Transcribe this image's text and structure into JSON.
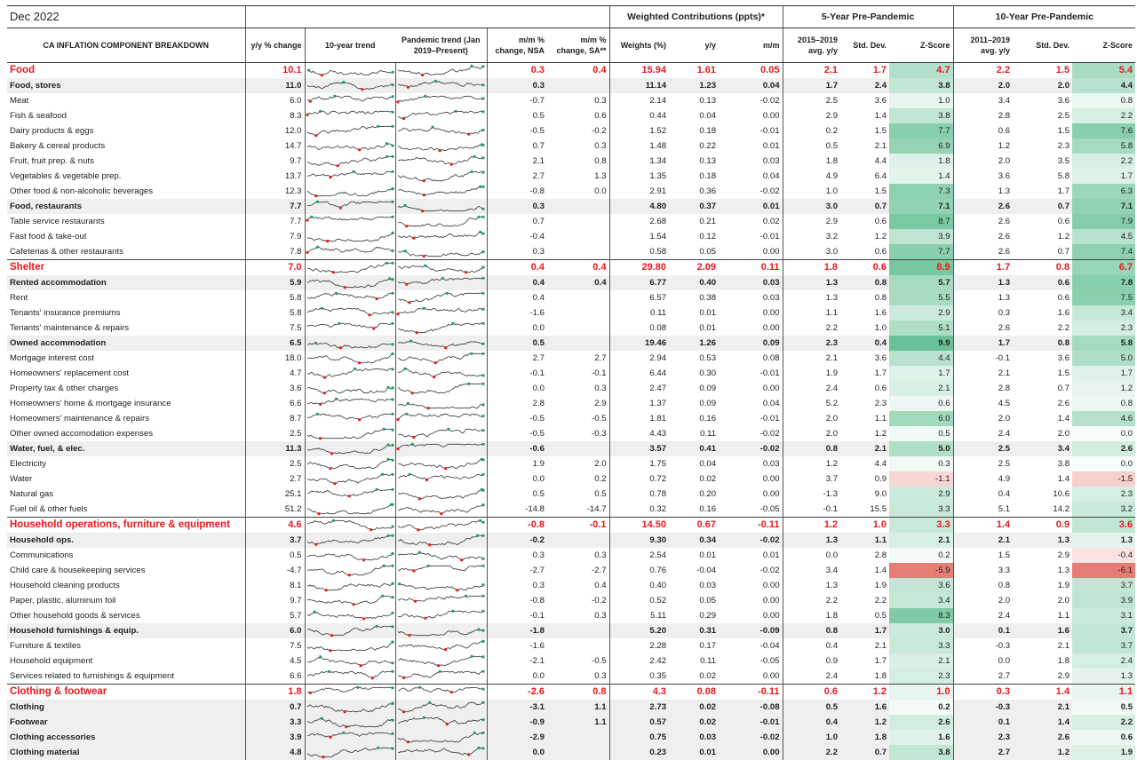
{
  "title_date": "Dec 2022",
  "group_headers": {
    "weighted": "Weighted Contributions (ppts)*",
    "five_year": "5-Year Pre-Pandemic",
    "ten_year": "10-Year Pre-Pandemic"
  },
  "columns": {
    "name": "CA INFLATION COMPONENT BREAKDOWN",
    "yy": "y/y % change",
    "trend10": "10-year trend",
    "trend_pandemic": "Pandemic trend (Jan 2019–Present)",
    "mm_nsa": "m/m % change, NSA",
    "mm_sa": "m/m % change, SA**",
    "weights": "Weights (%)",
    "w_yy": "y/y",
    "w_mm": "m/m",
    "avg5": "2015–2019 avg. y/y",
    "sd5": "Std. Dev.",
    "z5": "Z-Score",
    "avg10": "2011–2019 avg. y/y",
    "sd10": "Std. Dev.",
    "z10": "Z-Score"
  },
  "colors": {
    "category_text": "#e8191d",
    "sub_bg": "#efefef",
    "z_positive": "#57bb8a",
    "z_negative": "#e67c73",
    "spark_line": "#333333",
    "spark_low": "#e8191d",
    "spark_high": "#1a9e5b"
  },
  "rows": [
    {
      "type": "cat",
      "name": "Food",
      "yy": "10.1",
      "nsa": "0.3",
      "sa": "0.4",
      "w": "15.94",
      "wyy": "1.61",
      "wmm": "0.05",
      "a5": "2.1",
      "s5": "1.7",
      "z5": "4.7",
      "a10": "2.2",
      "s10": "1.5",
      "z10": "5.4"
    },
    {
      "type": "sub",
      "name": "Food, stores",
      "yy": "11.0",
      "nsa": "0.3",
      "sa": "",
      "w": "11.14",
      "wyy": "1.23",
      "wmm": "0.04",
      "a5": "1.7",
      "s5": "2.4",
      "z5": "3.8",
      "a10": "2.0",
      "s10": "2.0",
      "z10": "4.4"
    },
    {
      "type": "item",
      "name": "Meat",
      "yy": "6.0",
      "nsa": "-0.7",
      "sa": "0.3",
      "w": "2.14",
      "wyy": "0.13",
      "wmm": "-0.02",
      "a5": "2.5",
      "s5": "3.6",
      "z5": "1.0",
      "a10": "3.4",
      "s10": "3.6",
      "z10": "0.8"
    },
    {
      "type": "item",
      "name": "Fish & seafood",
      "yy": "8.3",
      "nsa": "0.5",
      "sa": "0.6",
      "w": "0.44",
      "wyy": "0.04",
      "wmm": "0.00",
      "a5": "2.9",
      "s5": "1.4",
      "z5": "3.8",
      "a10": "2.8",
      "s10": "2.5",
      "z10": "2.2"
    },
    {
      "type": "item",
      "name": "Dairy products & eggs",
      "yy": "12.0",
      "nsa": "-0.5",
      "sa": "-0.2",
      "w": "1.52",
      "wyy": "0.18",
      "wmm": "-0.01",
      "a5": "0.2",
      "s5": "1.5",
      "z5": "7.7",
      "a10": "0.6",
      "s10": "1.5",
      "z10": "7.6"
    },
    {
      "type": "item",
      "name": "Bakery & cereal products",
      "yy": "14.7",
      "nsa": "0.7",
      "sa": "0.3",
      "w": "1.48",
      "wyy": "0.22",
      "wmm": "0.01",
      "a5": "0.5",
      "s5": "2.1",
      "z5": "6.9",
      "a10": "1.2",
      "s10": "2.3",
      "z10": "5.8"
    },
    {
      "type": "item",
      "name": "Fruit, fruit prep. & nuts",
      "yy": "9.7",
      "nsa": "2.1",
      "sa": "0.8",
      "w": "1.34",
      "wyy": "0.13",
      "wmm": "0.03",
      "a5": "1.8",
      "s5": "4.4",
      "z5": "1.8",
      "a10": "2.0",
      "s10": "3.5",
      "z10": "2.2"
    },
    {
      "type": "item",
      "name": "Vegetables & vegetable prep.",
      "yy": "13.7",
      "nsa": "2.7",
      "sa": "1.3",
      "w": "1.35",
      "wyy": "0.18",
      "wmm": "0.04",
      "a5": "4.9",
      "s5": "6.4",
      "z5": "1.4",
      "a10": "3.6",
      "s10": "5.8",
      "z10": "1.7"
    },
    {
      "type": "item",
      "name": "Other food & non-alcoholic beverages",
      "yy": "12.3",
      "nsa": "-0.8",
      "sa": "0.0",
      "w": "2.91",
      "wyy": "0.36",
      "wmm": "-0.02",
      "a5": "1.0",
      "s5": "1.5",
      "z5": "7.3",
      "a10": "1.3",
      "s10": "1.7",
      "z10": "6.3"
    },
    {
      "type": "sub",
      "name": "Food, restaurants",
      "yy": "7.7",
      "nsa": "0.3",
      "sa": "",
      "w": "4.80",
      "wyy": "0.37",
      "wmm": "0.01",
      "a5": "3.0",
      "s5": "0.7",
      "z5": "7.1",
      "a10": "2.6",
      "s10": "0.7",
      "z10": "7.1"
    },
    {
      "type": "item",
      "name": "Table service restaurants",
      "yy": "7.7",
      "nsa": "0.7",
      "sa": "",
      "w": "2.68",
      "wyy": "0.21",
      "wmm": "0.02",
      "a5": "2.9",
      "s5": "0.6",
      "z5": "8.7",
      "a10": "2.6",
      "s10": "0.6",
      "z10": "7.9"
    },
    {
      "type": "item",
      "name": "Fast food & take-out",
      "yy": "7.9",
      "nsa": "-0.4",
      "sa": "",
      "w": "1.54",
      "wyy": "0.12",
      "wmm": "-0.01",
      "a5": "3.2",
      "s5": "1.2",
      "z5": "3.9",
      "a10": "2.6",
      "s10": "1.2",
      "z10": "4.5"
    },
    {
      "type": "item",
      "name": "Cafeterias & other restaurants",
      "yy": "7.8",
      "nsa": "0.3",
      "sa": "",
      "w": "0.58",
      "wyy": "0.05",
      "wmm": "0.00",
      "a5": "3.0",
      "s5": "0.6",
      "z5": "7.7",
      "a10": "2.6",
      "s10": "0.7",
      "z10": "7.4"
    },
    {
      "type": "cat",
      "name": "Shelter",
      "yy": "7.0",
      "nsa": "0.4",
      "sa": "0.4",
      "w": "29.80",
      "wyy": "2.09",
      "wmm": "0.11",
      "a5": "1.8",
      "s5": "0.6",
      "z5": "8.9",
      "a10": "1.7",
      "s10": "0.8",
      "z10": "6.7"
    },
    {
      "type": "sub",
      "name": "Rented accommodation",
      "yy": "5.9",
      "nsa": "0.4",
      "sa": "0.4",
      "w": "6.77",
      "wyy": "0.40",
      "wmm": "0.03",
      "a5": "1.3",
      "s5": "0.8",
      "z5": "5.7",
      "a10": "1.3",
      "s10": "0.6",
      "z10": "7.8"
    },
    {
      "type": "item",
      "name": "Rent",
      "yy": "5.8",
      "nsa": "0.4",
      "sa": "",
      "w": "6.57",
      "wyy": "0.38",
      "wmm": "0.03",
      "a5": "1.3",
      "s5": "0.8",
      "z5": "5.5",
      "a10": "1.3",
      "s10": "0.6",
      "z10": "7.5"
    },
    {
      "type": "item",
      "name": "Tenants' insurance premiums",
      "yy": "5.8",
      "nsa": "-1.6",
      "sa": "",
      "w": "0.11",
      "wyy": "0.01",
      "wmm": "0.00",
      "a5": "1.1",
      "s5": "1.6",
      "z5": "2.9",
      "a10": "0.3",
      "s10": "1.6",
      "z10": "3.4"
    },
    {
      "type": "item",
      "name": "Tenants' maintenance & repairs",
      "yy": "7.5",
      "nsa": "0.0",
      "sa": "",
      "w": "0.08",
      "wyy": "0.01",
      "wmm": "0.00",
      "a5": "2.2",
      "s5": "1.0",
      "z5": "5.1",
      "a10": "2.6",
      "s10": "2.2",
      "z10": "2.3"
    },
    {
      "type": "sub",
      "name": "Owned accommodation",
      "yy": "6.5",
      "nsa": "0.5",
      "sa": "",
      "w": "19.46",
      "wyy": "1.26",
      "wmm": "0.09",
      "a5": "2.3",
      "s5": "0.4",
      "z5": "9.9",
      "a10": "1.7",
      "s10": "0.8",
      "z10": "5.8"
    },
    {
      "type": "item",
      "name": "Mortgage interest cost",
      "yy": "18.0",
      "nsa": "2.7",
      "sa": "2.7",
      "w": "2.94",
      "wyy": "0.53",
      "wmm": "0.08",
      "a5": "2.1",
      "s5": "3.6",
      "z5": "4.4",
      "a10": "-0.1",
      "s10": "3.6",
      "z10": "5.0"
    },
    {
      "type": "item",
      "name": "Homeowners' replacement cost",
      "yy": "4.7",
      "nsa": "-0.1",
      "sa": "-0.1",
      "w": "6.44",
      "wyy": "0.30",
      "wmm": "-0.01",
      "a5": "1.9",
      "s5": "1.7",
      "z5": "1.7",
      "a10": "2.1",
      "s10": "1.5",
      "z10": "1.7"
    },
    {
      "type": "item",
      "name": "Property tax & other charges",
      "yy": "3.6",
      "nsa": "0.0",
      "sa": "0.3",
      "w": "2.47",
      "wyy": "0.09",
      "wmm": "0.00",
      "a5": "2.4",
      "s5": "0.6",
      "z5": "2.1",
      "a10": "2.8",
      "s10": "0.7",
      "z10": "1.2"
    },
    {
      "type": "item",
      "name": "Homeowners' home & mortgage insurance",
      "yy": "6.6",
      "nsa": "2.8",
      "sa": "2.9",
      "w": "1.37",
      "wyy": "0.09",
      "wmm": "0.04",
      "a5": "5.2",
      "s5": "2.3",
      "z5": "0.6",
      "a10": "4.5",
      "s10": "2.6",
      "z10": "0.8"
    },
    {
      "type": "item",
      "name": "Homeowners' maintenance & repairs",
      "yy": "8.7",
      "nsa": "-0.5",
      "sa": "-0.5",
      "w": "1.81",
      "wyy": "0.16",
      "wmm": "-0.01",
      "a5": "2.0",
      "s5": "1.1",
      "z5": "6.0",
      "a10": "2.0",
      "s10": "1.4",
      "z10": "4.6"
    },
    {
      "type": "item",
      "name": "Other owned accomodation expenses",
      "yy": "2.5",
      "nsa": "-0.5",
      "sa": "-0.3",
      "w": "4.43",
      "wyy": "0.11",
      "wmm": "-0.02",
      "a5": "2.0",
      "s5": "1.2",
      "z5": "0.5",
      "a10": "2.4",
      "s10": "2.0",
      "z10": "0.0"
    },
    {
      "type": "sub",
      "name": "Water, fuel, & elec.",
      "yy": "11.3",
      "nsa": "-0.6",
      "sa": "",
      "w": "3.57",
      "wyy": "0.41",
      "wmm": "-0.02",
      "a5": "0.8",
      "s5": "2.1",
      "z5": "5.0",
      "a10": "2.5",
      "s10": "3.4",
      "z10": "2.6"
    },
    {
      "type": "item",
      "name": "Electricity",
      "yy": "2.5",
      "nsa": "1.9",
      "sa": "2.0",
      "w": "1.75",
      "wyy": "0.04",
      "wmm": "0.03",
      "a5": "1.2",
      "s5": "4.4",
      "z5": "0.3",
      "a10": "2.5",
      "s10": "3.8",
      "z10": "0.0"
    },
    {
      "type": "item",
      "name": "Water",
      "yy": "2.7",
      "nsa": "0.0",
      "sa": "0.2",
      "w": "0.72",
      "wyy": "0.02",
      "wmm": "0.00",
      "a5": "3.7",
      "s5": "0.9",
      "z5": "-1.1",
      "a10": "4.9",
      "s10": "1.4",
      "z10": "-1.5"
    },
    {
      "type": "item",
      "name": "Natural gas",
      "yy": "25.1",
      "nsa": "0.5",
      "sa": "0.5",
      "w": "0.78",
      "wyy": "0.20",
      "wmm": "0.00",
      "a5": "-1.3",
      "s5": "9.0",
      "z5": "2.9",
      "a10": "0.4",
      "s10": "10.6",
      "z10": "2.3"
    },
    {
      "type": "item",
      "name": "Fuel oil & other fuels",
      "yy": "51.2",
      "nsa": "-14.8",
      "sa": "-14.7",
      "w": "0.32",
      "wyy": "0.16",
      "wmm": "-0.05",
      "a5": "-0.1",
      "s5": "15.5",
      "z5": "3.3",
      "a10": "5.1",
      "s10": "14.2",
      "z10": "3.2"
    },
    {
      "type": "cat",
      "name": "Household operations, furniture & equipment",
      "yy": "4.6",
      "nsa": "-0.8",
      "sa": "-0.1",
      "w": "14.50",
      "wyy": "0.67",
      "wmm": "-0.11",
      "a5": "1.2",
      "s5": "1.0",
      "z5": "3.3",
      "a10": "1.4",
      "s10": "0.9",
      "z10": "3.6"
    },
    {
      "type": "sub",
      "name": "Household ops.",
      "yy": "3.7",
      "nsa": "-0.2",
      "sa": "",
      "w": "9.30",
      "wyy": "0.34",
      "wmm": "-0.02",
      "a5": "1.3",
      "s5": "1.1",
      "z5": "2.1",
      "a10": "2.1",
      "s10": "1.3",
      "z10": "1.3"
    },
    {
      "type": "item",
      "name": "Communications",
      "yy": "0.5",
      "nsa": "0.3",
      "sa": "0.3",
      "w": "2.54",
      "wyy": "0.01",
      "wmm": "0.01",
      "a5": "0.0",
      "s5": "2.8",
      "z5": "0.2",
      "a10": "1.5",
      "s10": "2.9",
      "z10": "-0.4"
    },
    {
      "type": "item",
      "name": "Child care & housekeeping services",
      "yy": "-4.7",
      "nsa": "-2.7",
      "sa": "-2.7",
      "w": "0.76",
      "wyy": "-0.04",
      "wmm": "-0.02",
      "a5": "3.4",
      "s5": "1.4",
      "z5": "-5.9",
      "a10": "3.3",
      "s10": "1.3",
      "z10": "-6.1"
    },
    {
      "type": "item",
      "name": "Household cleaning products",
      "yy": "8.1",
      "nsa": "0.3",
      "sa": "0.4",
      "w": "0.40",
      "wyy": "0.03",
      "wmm": "0.00",
      "a5": "1.3",
      "s5": "1.9",
      "z5": "3.6",
      "a10": "0.8",
      "s10": "1.9",
      "z10": "3.7"
    },
    {
      "type": "item",
      "name": "Paper, plastic, aluminum foil",
      "yy": "9.7",
      "nsa": "-0.8",
      "sa": "-0.2",
      "w": "0.52",
      "wyy": "0.05",
      "wmm": "0.00",
      "a5": "2.2",
      "s5": "2.2",
      "z5": "3.4",
      "a10": "2.0",
      "s10": "2.0",
      "z10": "3.9"
    },
    {
      "type": "item",
      "name": "Other household goods & services",
      "yy": "5.7",
      "nsa": "-0.1",
      "sa": "0.3",
      "w": "5.11",
      "wyy": "0.29",
      "wmm": "0.00",
      "a5": "1.8",
      "s5": "0.5",
      "z5": "8.3",
      "a10": "2.4",
      "s10": "1.1",
      "z10": "3.1"
    },
    {
      "type": "sub",
      "name": "Household furnishings & equip.",
      "yy": "6.0",
      "nsa": "-1.8",
      "sa": "",
      "w": "5.20",
      "wyy": "0.31",
      "wmm": "-0.09",
      "a5": "0.8",
      "s5": "1.7",
      "z5": "3.0",
      "a10": "0.1",
      "s10": "1.6",
      "z10": "3.7"
    },
    {
      "type": "item",
      "name": "Furniture & textiles",
      "yy": "7.5",
      "nsa": "-1.6",
      "sa": "",
      "w": "2.28",
      "wyy": "0.17",
      "wmm": "-0.04",
      "a5": "0.4",
      "s5": "2.1",
      "z5": "3.3",
      "a10": "-0.3",
      "s10": "2.1",
      "z10": "3.7"
    },
    {
      "type": "item",
      "name": "Household equipment",
      "yy": "4.5",
      "nsa": "-2.1",
      "sa": "-0.5",
      "w": "2.42",
      "wyy": "0.11",
      "wmm": "-0.05",
      "a5": "0.9",
      "s5": "1.7",
      "z5": "2.1",
      "a10": "0.0",
      "s10": "1.8",
      "z10": "2.4"
    },
    {
      "type": "item",
      "name": "Services related to furnishings & equipment",
      "yy": "6.6",
      "nsa": "0.0",
      "sa": "0.3",
      "w": "0.35",
      "wyy": "0.02",
      "wmm": "0.00",
      "a5": "2.4",
      "s5": "1.8",
      "z5": "2.3",
      "a10": "2.7",
      "s10": "2.9",
      "z10": "1.3"
    },
    {
      "type": "cat",
      "name": "Clothing & footwear",
      "yy": "1.8",
      "nsa": "-2.6",
      "sa": "0.8",
      "w": "4.3",
      "wyy": "0.08",
      "wmm": "-0.11",
      "a5": "0.6",
      "s5": "1.2",
      "z5": "1.0",
      "a10": "0.3",
      "s10": "1.4",
      "z10": "1.1"
    },
    {
      "type": "sub",
      "name": "Clothing",
      "yy": "0.7",
      "nsa": "-3.1",
      "sa": "1.1",
      "w": "2.73",
      "wyy": "0.02",
      "wmm": "-0.08",
      "a5": "0.5",
      "s5": "1.6",
      "z5": "0.2",
      "a10": "-0.3",
      "s10": "2.1",
      "z10": "0.5"
    },
    {
      "type": "sub",
      "name": "Footwear",
      "yy": "3.3",
      "nsa": "-0.9",
      "sa": "1.1",
      "w": "0.57",
      "wyy": "0.02",
      "wmm": "-0.01",
      "a5": "0.4",
      "s5": "1.2",
      "z5": "2.6",
      "a10": "0.1",
      "s10": "1.4",
      "z10": "2.2"
    },
    {
      "type": "sub",
      "name": "Clothing accessories",
      "yy": "3.9",
      "nsa": "-2.9",
      "sa": "",
      "w": "0.75",
      "wyy": "0.03",
      "wmm": "-0.02",
      "a5": "1.0",
      "s5": "1.8",
      "z5": "1.6",
      "a10": "2.3",
      "s10": "2.6",
      "z10": "0.6"
    },
    {
      "type": "sub",
      "name": "Clothing material",
      "yy": "4.8",
      "nsa": "0.0",
      "sa": "",
      "w": "0.23",
      "wyy": "0.01",
      "wmm": "0.00",
      "a5": "2.2",
      "s5": "0.7",
      "z5": "3.8",
      "a10": "2.7",
      "s10": "1.2",
      "z10": "1.9"
    }
  ]
}
